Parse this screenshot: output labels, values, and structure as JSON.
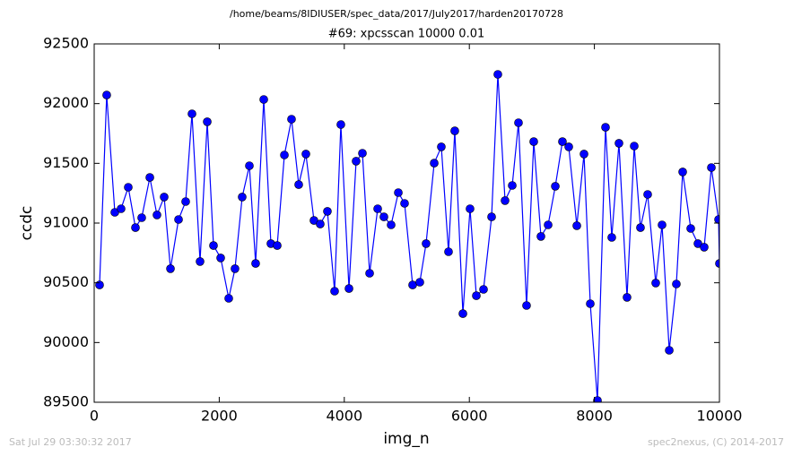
{
  "chart_data": {
    "type": "line",
    "supertitle": "/home/beams/8IDIUSER/spec_data/2017/July2017/harden20170728",
    "title": "#69: xpcsscan 10000 0.01",
    "xlabel": "img_n",
    "ylabel": "ccdc",
    "footer_left": "Sat Jul 29 03:30:32 2017",
    "footer_right": "spec2nexus, (C) 2014-2017",
    "color": "#0000ff",
    "marker": "circle",
    "xlim": [
      0,
      10000
    ],
    "ylim": [
      89500,
      92500
    ],
    "xticks": [
      0,
      2000,
      4000,
      6000,
      8000,
      10000
    ],
    "yticks": [
      89500,
      90000,
      90500,
      91000,
      91500,
      92000,
      92500
    ],
    "x": [
      86,
      200,
      330,
      430,
      545,
      660,
      760,
      890,
      1004,
      1119,
      1220,
      1349,
      1463,
      1564,
      1693,
      1808,
      1908,
      2023,
      2152,
      2252,
      2367,
      2482,
      2582,
      2712,
      2826,
      2927,
      3042,
      3156,
      3271,
      3386,
      3515,
      3615,
      3730,
      3845,
      3945,
      4075,
      4189,
      4290,
      4405,
      4534,
      4634,
      4749,
      4864,
      4964,
      5093,
      5208,
      5308,
      5438,
      5552,
      5667,
      5767,
      5897,
      6011,
      6112,
      6227,
      6356,
      6456,
      6571,
      6686,
      6786,
      6915,
      7030,
      7145,
      7260,
      7375,
      7489,
      7590,
      7719,
      7834,
      7934,
      8049,
      8178,
      8278,
      8393,
      8522,
      8637,
      8737,
      8852,
      8981,
      9082,
      9197,
      9311,
      9412,
      9541,
      9656,
      9756,
      9871,
      9986,
      10000
    ],
    "values": [
      90482,
      92072,
      91090,
      91120,
      91300,
      90962,
      91045,
      91382,
      91068,
      91218,
      90618,
      91030,
      91180,
      91915,
      90678,
      91848,
      90812,
      90708,
      90370,
      90618,
      91218,
      91480,
      90662,
      92035,
      90828,
      90812,
      91570,
      91870,
      91322,
      91578,
      91022,
      90992,
      91098,
      90430,
      91825,
      90452,
      91518,
      91585,
      90580,
      91120,
      91052,
      90985,
      91255,
      91165,
      90482,
      90505,
      90828,
      91502,
      91638,
      90760,
      91772,
      90242,
      91120,
      90392,
      90445,
      91052,
      92245,
      91188,
      91315,
      91840,
      90310,
      91682,
      90888,
      90985,
      91308,
      91682,
      91638,
      90978,
      91578,
      90325,
      89515,
      91802,
      90880,
      91668,
      90378,
      91645,
      90962,
      91240,
      90498,
      90985,
      89935,
      90490,
      91428,
      90955,
      90828,
      90798,
      91465,
      91030,
      90662
    ]
  }
}
